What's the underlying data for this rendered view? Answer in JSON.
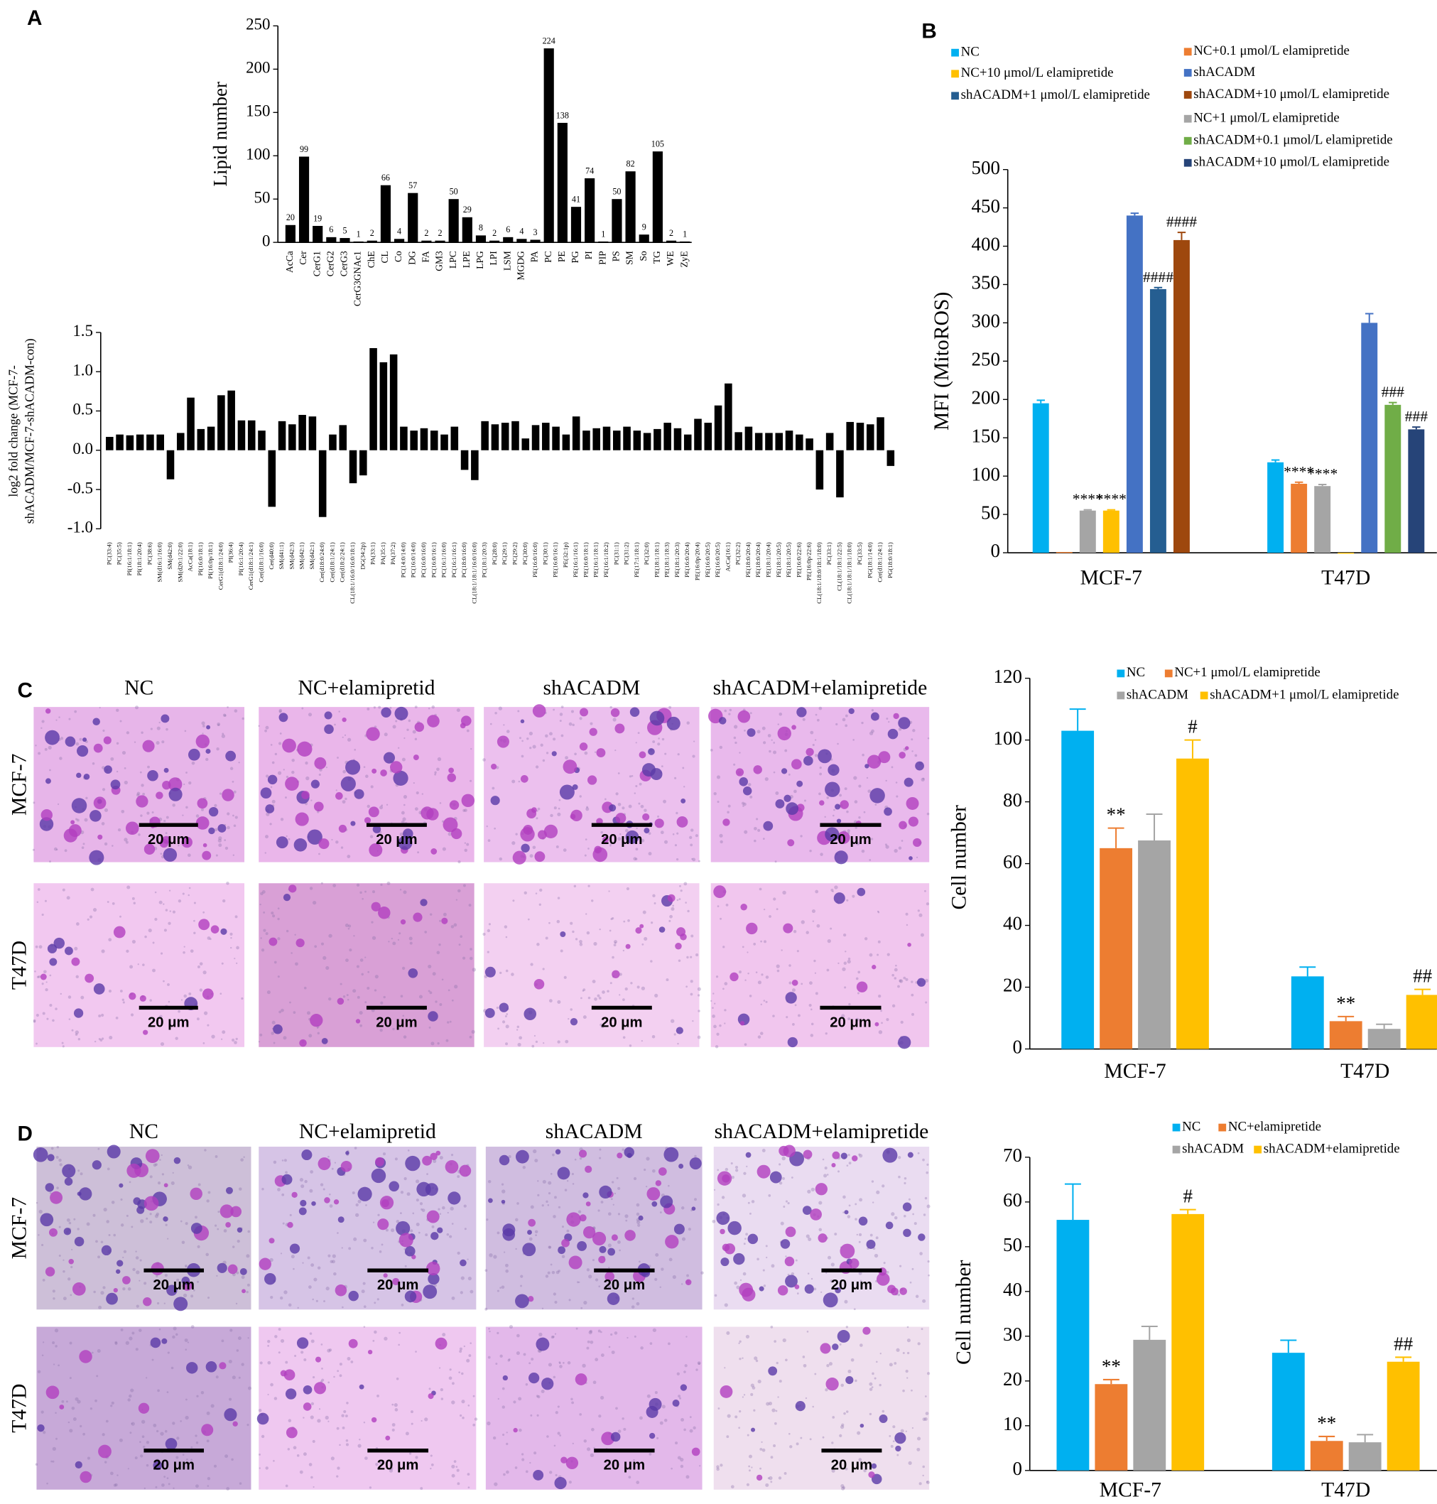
{
  "panel_labels": [
    "A",
    "B",
    "C",
    "D"
  ],
  "chart_data": [
    {
      "type": "bar",
      "y_label": "Lipid number",
      "categories": [
        "AcCa",
        "Cer",
        "CerG1",
        "CerG2",
        "CerG3",
        "CerG3GNAc1",
        "ChE",
        "CL",
        "Co",
        "DG",
        "FA",
        "GM3",
        "LPC",
        "LPE",
        "LPG",
        "LPI",
        "LSM",
        "MGDG",
        "PA",
        "PC",
        "PE",
        "PG",
        "PI",
        "PIP",
        "PS",
        "SM",
        "So",
        "TG",
        "WE",
        "ZyE"
      ],
      "values": [
        20,
        99,
        19,
        6,
        5,
        1,
        2,
        66,
        4,
        57,
        2,
        2,
        50,
        29,
        8,
        2,
        6,
        4,
        3,
        224,
        138,
        41,
        74,
        1,
        50,
        82,
        9,
        105,
        2,
        1
      ],
      "data_labels": true,
      "color": "#000000",
      "ylim": [
        0,
        250
      ],
      "yticks": [
        0,
        50,
        100,
        150,
        200,
        250
      ]
    },
    {
      "type": "bar",
      "y_label": [
        "log2 fold change (MCF-7-",
        "shACADM/MCF-7-shACADM-con)"
      ],
      "categories": [
        "PC(33:4)",
        "PC(35:5)",
        "PI(16:1/18:1)",
        "PI(18:1/20:4)",
        "PC(38:6)",
        "SM(d16:1/16:0)",
        "SM(d42:0)",
        "SM(d20:1/22:0)",
        "AcCa(18:1)",
        "PI(16:0/18:1)",
        "PI(16:0p/18:1)",
        "CerG1(d18:1/24:0)",
        "PI(36:4)",
        "PI(16:1/20:4)",
        "CerG1(d18:1/24:1)",
        "Cer(d18:1/16:0)",
        "Cer(d40:0)",
        "SM(d41:1)",
        "SM(d42:3)",
        "SM(d42:1)",
        "SM(d42:1)",
        "Cer(d18:0/24:0)",
        "Cer(d18:1/24:1)",
        "Cer(d18:2/24:1)",
        "CL(18:1/16:0/16:0/18:1)",
        "DG(34:2p)",
        "PA(33:1)",
        "PA(35:1)",
        "PA(37:2)",
        "PC(14:0/14:0)",
        "PC(16:0/14:0)",
        "PC(16:0/16:0)",
        "PC(16:0/16:1)",
        "PC(16:1/16:0)",
        "PC(16:1/16:1)",
        "PC(18:0/16:0)",
        "CL(18:1/18:1/16:0/16:0)",
        "PC(18:1/20:3)",
        "PC(28:0)",
        "PC(29:1)",
        "PC(29:2)",
        "PC(30:0)",
        "PE(16:0/16:0)",
        "PC(30:1)",
        "PE(16:0/16:1)",
        "PE(32:1p)",
        "PE(16:1/16:1)",
        "PE(16:0/18:1)",
        "PE(16:1/18:1)",
        "PE(16:1/18:2)",
        "PC(31:1)",
        "PC(31:2)",
        "PE(17:1/18:1)",
        "PC(32:0)",
        "PE(18:1/18:1)",
        "PE(18:1/18:3)",
        "PE(18:1/20:3)",
        "PE(16:0/20:4)",
        "PE(16:0p/20:4)",
        "PE(16:0/20:5)",
        "PE(16:0/20:5)",
        "AcCa(16:1)",
        "PC(32:2)",
        "PE(18:0/20:4)",
        "PE(18:0/20:4)",
        "PE(18:1/20:4)",
        "PE(18:1/20:5)",
        "PE(18:1/20:5)",
        "PE(16:0/22:6)",
        "PE(16:0p/22:6)",
        "CL(18:1/18:0/18:1/18:0)",
        "PC(33:1)",
        "CL(18:1/18:1/22:5)",
        "CL(18:1/18:1/18:1/18:0)",
        "PC(33:5)",
        "PG(18:1/14:0)",
        "Cer(d18:1/24:1)",
        "PG(18:0/18:1)"
      ],
      "values": [
        0.17,
        0.2,
        0.19,
        0.2,
        0.2,
        0.2,
        -0.37,
        0.22,
        0.67,
        0.27,
        0.3,
        0.7,
        0.76,
        0.38,
        0.38,
        0.25,
        -0.72,
        0.37,
        0.33,
        0.45,
        0.43,
        -0.85,
        0.2,
        0.32,
        -0.42,
        -0.32,
        1.3,
        1.12,
        1.22,
        0.3,
        0.25,
        0.28,
        0.25,
        0.2,
        0.3,
        -0.25,
        -0.38,
        0.37,
        0.33,
        0.35,
        0.37,
        0.15,
        0.32,
        0.35,
        0.3,
        0.2,
        0.43,
        0.25,
        0.28,
        0.3,
        0.25,
        0.3,
        0.25,
        0.22,
        0.27,
        0.35,
        0.28,
        0.2,
        0.4,
        0.35,
        0.57,
        0.85,
        0.23,
        0.3,
        0.22,
        0.22,
        0.22,
        0.25,
        0.2,
        0.15,
        -0.5,
        0.22,
        -0.6,
        0.36,
        0.35,
        0.33,
        0.42,
        -0.2
      ],
      "data_labels": false,
      "color": "#000000",
      "ylim": [
        -1,
        1.5
      ],
      "yticks": [
        {
          "value": -1,
          "label": "-1.0"
        },
        -0.5,
        {
          "value": 0,
          "label": "0.0"
        },
        0.5,
        {
          "value": 1,
          "label": "1.0"
        },
        1.5
      ]
    },
    {
      "type": "grouped_bar",
      "y_label": "MFI (MitoROS)",
      "categories": [
        "MCF-7",
        "T47D"
      ],
      "series": [
        {
          "name": "NC",
          "color": "#00b0f0",
          "values": [
            195,
            118
          ],
          "errors": [
            4,
            3
          ],
          "significance": [
            null,
            null
          ]
        },
        {
          "name": "NC+0.1 μmol/L elamipretide",
          "color": "#ed7d31",
          "values": [
            1,
            90
          ],
          "errors": [
            null,
            2
          ],
          "significance": [
            null,
            "****"
          ]
        },
        {
          "name": "NC+1 μmol/L elamipretide",
          "color": "#a5a5a5",
          "values": [
            55,
            87
          ],
          "errors": [
            1,
            2
          ],
          "significance": [
            "****",
            "****"
          ]
        },
        {
          "name": "NC+10 μmol/L elamipretide",
          "color": "#ffc000",
          "values": [
            55,
            0
          ],
          "errors": [
            1,
            null
          ],
          "significance": [
            "****",
            null
          ]
        },
        {
          "name": "shACADM",
          "color": "#4472c4",
          "values": [
            440,
            300
          ],
          "errors": [
            3,
            12
          ],
          "significance": [
            null,
            null
          ]
        },
        {
          "name": "shACADM+0.1 μmol/L elamipretide",
          "color": "#70ad47",
          "values": [
            null,
            193
          ],
          "errors": [
            null,
            3
          ],
          "significance": [
            null,
            "###"
          ]
        },
        {
          "name": "shACADM+1 μmol/L elamipretide",
          "color": "#255e91",
          "values": [
            344,
            null
          ],
          "errors": [
            2,
            null
          ],
          "significance": [
            "####",
            null
          ]
        },
        {
          "name": "shACADM+10 μmol/L elamipretide",
          "color": "#9e480e",
          "values": [
            408,
            null
          ],
          "errors": [
            10,
            null
          ],
          "significance": [
            "####",
            null
          ]
        },
        {
          "name": "shACADM+10 μmol/L elamipretide",
          "color": "#264478",
          "values": [
            null,
            161
          ],
          "errors": [
            null,
            3
          ],
          "significance": [
            null,
            "###"
          ]
        }
      ],
      "ylim": [
        0,
        500
      ],
      "yticks": [
        0,
        50,
        100,
        150,
        200,
        250,
        300,
        350,
        400,
        450,
        500
      ]
    },
    {
      "type": "grouped_bar",
      "y_label": "Cell number",
      "categories": [
        "MCF-7",
        "T47D"
      ],
      "series": [
        {
          "name": "NC",
          "color": "#00b0f0",
          "values": [
            103,
            23.5
          ],
          "errors": [
            7,
            3
          ],
          "significance": [
            null,
            null
          ]
        },
        {
          "name": "NC+1 μmol/L elamipretide",
          "color": "#ed7d31",
          "values": [
            65,
            9
          ],
          "errors": [
            6.5,
            1.5
          ],
          "significance": [
            "**",
            "**"
          ]
        },
        {
          "name": "shACADM",
          "color": "#a5a5a5",
          "values": [
            67.5,
            6.5
          ],
          "errors": [
            8.5,
            1.5
          ],
          "significance": [
            null,
            null
          ]
        },
        {
          "name": "shACADM+1 μmol/L elamipretide",
          "color": "#ffc000",
          "values": [
            94,
            17.5
          ],
          "errors": [
            6,
            1.8
          ],
          "significance": [
            "#",
            "##"
          ]
        }
      ],
      "ylim": [
        0,
        120
      ],
      "yticks": [
        0,
        20,
        40,
        60,
        80,
        100,
        120
      ]
    },
    {
      "type": "grouped_bar",
      "y_label": "Cell number",
      "categories": [
        "MCF-7",
        "T47D"
      ],
      "series": [
        {
          "name": "NC",
          "color": "#00b0f0",
          "values": [
            56,
            26.3
          ],
          "errors": [
            8,
            2.8
          ],
          "significance": [
            null,
            null
          ]
        },
        {
          "name": "NC+elamipretide",
          "color": "#ed7d31",
          "values": [
            19.3,
            6.6
          ],
          "errors": [
            1,
            1
          ],
          "significance": [
            "**",
            "**"
          ]
        },
        {
          "name": "shACADM",
          "color": "#a5a5a5",
          "values": [
            29.2,
            6.3
          ],
          "errors": [
            3,
            1.7
          ],
          "significance": [
            null,
            null
          ]
        },
        {
          "name": "shACADM+elamipretide",
          "color": "#ffc000",
          "values": [
            57.3,
            24.3
          ],
          "errors": [
            1,
            1
          ],
          "significance": [
            "#",
            "##"
          ]
        }
      ],
      "ylim": [
        0,
        70
      ],
      "yticks": [
        0,
        10,
        20,
        30,
        40,
        50,
        60,
        70
      ]
    }
  ],
  "micrographs": [
    {
      "columns": [
        "NC",
        "NC+elamipretid",
        "shACADM",
        "shACADM+elamipretide"
      ],
      "rows": [
        "MCF-7",
        "T47D"
      ],
      "scale_labels": [
        [
          "20 μm",
          "20 μm",
          "20 μm",
          "20 μm"
        ],
        [
          "20 μm",
          "20 μm",
          "20 μm",
          "20 μm"
        ]
      ]
    },
    {
      "columns": [
        "NC",
        "NC+elamipretid",
        "shACADM",
        "shACADM+elamipretide"
      ],
      "rows": [
        "MCF-7",
        "T47D"
      ],
      "scale_labels": [
        [
          "20 μm",
          "20 μm",
          "20 μm",
          "20 μm"
        ],
        [
          "20 μm",
          "20 μm",
          "20 μm",
          "20 μm"
        ]
      ]
    }
  ]
}
